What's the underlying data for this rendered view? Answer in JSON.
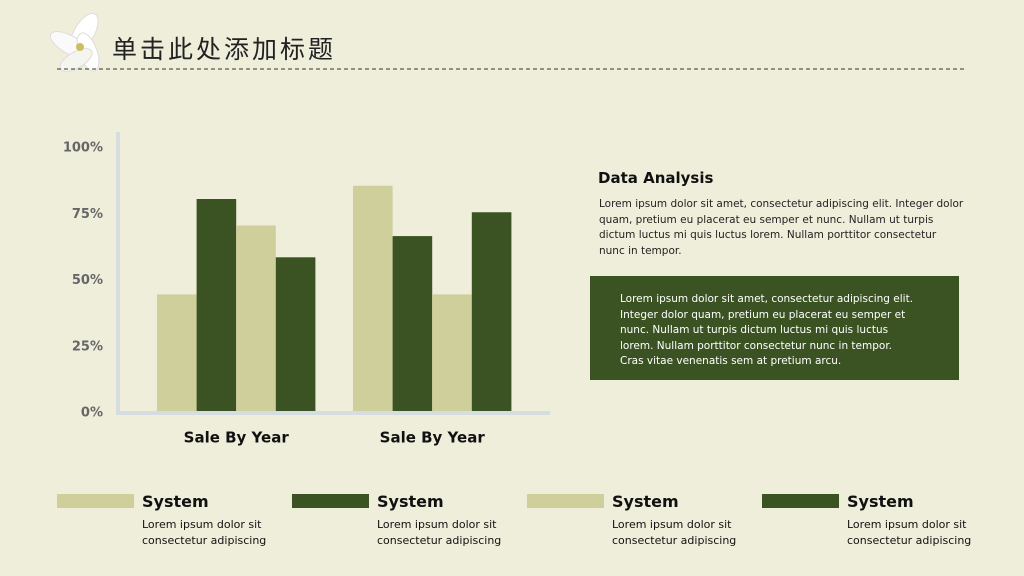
{
  "title": "单击此处添加标题",
  "chart_data": {
    "type": "bar",
    "categories": [
      "Sale By Year",
      "Sale By Year"
    ],
    "series": [
      {
        "name": "System",
        "color": "#cfcf9b",
        "values": [
          44,
          85
        ]
      },
      {
        "name": "System",
        "color": "#3b5323",
        "values": [
          80,
          66
        ]
      },
      {
        "name": "System",
        "color": "#cfcf9b",
        "values": [
          70,
          44
        ]
      },
      {
        "name": "System",
        "color": "#3b5323",
        "values": [
          58,
          75
        ]
      }
    ],
    "ylim": [
      0,
      100
    ],
    "yticks": [
      {
        "value": 0,
        "label": "0%"
      },
      {
        "value": 25,
        "label": "25%"
      },
      {
        "value": 50,
        "label": "50%"
      },
      {
        "value": 75,
        "label": "75%"
      },
      {
        "value": 100,
        "label": "100%"
      }
    ]
  },
  "legend_notes": [
    "Lorem ipsum dolor sit consectetur adipiscing",
    "Lorem ipsum dolor sit consectetur adipiscing",
    "Lorem ipsum dolor sit consectetur adipiscing",
    "Lorem ipsum dolor sit consectetur adipiscing"
  ],
  "analysis": {
    "heading": "Data Analysis",
    "text": "Lorem ipsum dolor sit amet, consectetur adipiscing elit. Integer dolor quam, pretium eu placerat eu semper et nunc. Nullam ut turpis dictum luctus mi quis luctus lorem. Nullam porttitor consectetur nunc in tempor.",
    "box_text": "Lorem ipsum dolor sit amet, consectetur adipiscing elit. Integer dolor quam, pretium eu placerat eu semper et nunc. Nullam ut turpis dictum luctus mi quis luctus lorem. Nullam porttitor consectetur nunc in tempor. Cras vitae venenatis sem at pretium arcu."
  }
}
